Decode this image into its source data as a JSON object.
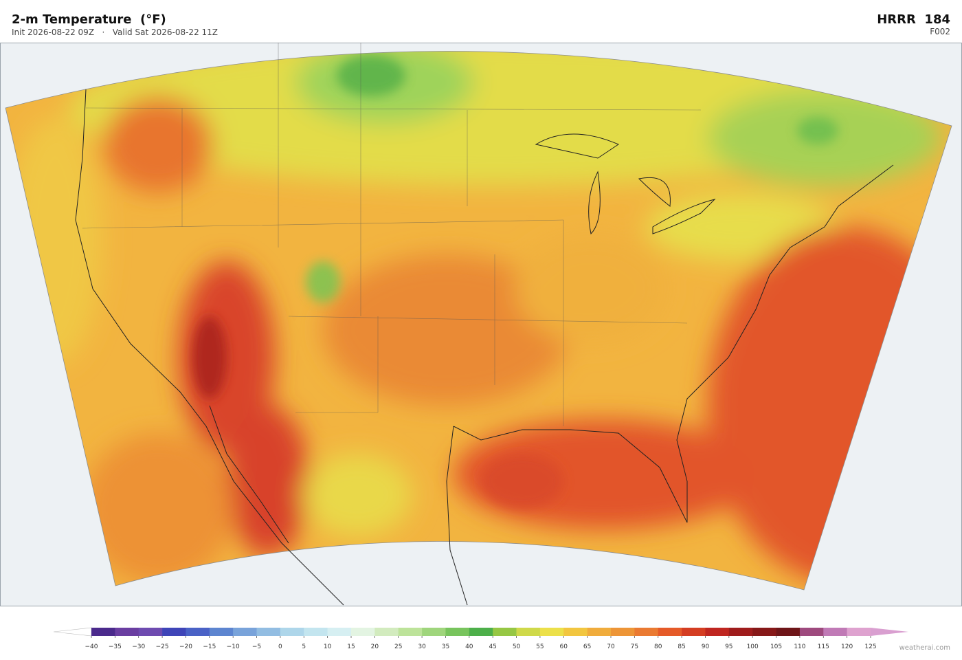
{
  "header": {
    "title": "2-m Temperature  (°F)",
    "subtitle": "Init 2026-08-22 09Z   ·   Valid Sat 2026-08-22 11Z",
    "model": "HRRR  184",
    "forecast_hour": "F002"
  },
  "colorbar": {
    "ticks": [
      {
        "value": -40,
        "label": "−40"
      },
      {
        "value": -35,
        "label": "−35"
      },
      {
        "value": -30,
        "label": "−30"
      },
      {
        "value": -25,
        "label": "−25"
      },
      {
        "value": -20,
        "label": "−20"
      },
      {
        "value": -15,
        "label": "−15"
      },
      {
        "value": -10,
        "label": "−10"
      },
      {
        "value": -5,
        "label": "−5"
      },
      0,
      5,
      10,
      15,
      20,
      25,
      30,
      35,
      40,
      45,
      50,
      55,
      60,
      65,
      70,
      75,
      80,
      85,
      90,
      95,
      100,
      105,
      110,
      115,
      120,
      125
    ],
    "colors": [
      "#4b2a8c",
      "#6a3ea1",
      "#6e4bb0",
      "#3f45b8",
      "#4a62c6",
      "#5d85d0",
      "#79a3da",
      "#92bde2",
      "#aed6ea",
      "#c3e5ef",
      "#d6eff2",
      "#e3f4e2",
      "#d2ebbe",
      "#bde39a",
      "#9fd57c",
      "#78c45d",
      "#4daf4a",
      "#96c744",
      "#cfd94a",
      "#ece04a",
      "#f2c640",
      "#f0ac3c",
      "#ed9537",
      "#ea7a32",
      "#e55a28",
      "#d43d22",
      "#bf2620",
      "#9f1c1c",
      "#861818",
      "#6e1518",
      "#9e4a7e",
      "#c07ab6",
      "#dea2cf"
    ],
    "under_color": "#ffffff",
    "over_color": "#d99fd0"
  },
  "footer": {
    "credit": "weatherai.com"
  }
}
